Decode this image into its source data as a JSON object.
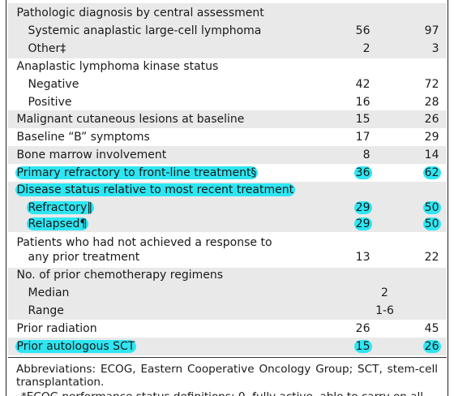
{
  "rows": {
    "path_dx": {
      "label": "Pathologic diagnosis by central assessment"
    },
    "salcl": {
      "label": "Systemic anaplastic large-cell lymphoma",
      "n": "56",
      "pct": "97"
    },
    "other": {
      "label": "Other‡",
      "n": "2",
      "pct": "3"
    },
    "alk": {
      "label": "Anaplastic lymphoma kinase status"
    },
    "neg": {
      "label": "Negative",
      "n": "42",
      "pct": "72"
    },
    "pos": {
      "label": "Positive",
      "n": "16",
      "pct": "28"
    },
    "mcl": {
      "label": "Malignant cutaneous lesions at baseline",
      "n": "15",
      "pct": "26"
    },
    "bsym": {
      "label": "Baseline “B” symptoms",
      "n": "17",
      "pct": "29"
    },
    "bm": {
      "label": "Bone marrow involvement",
      "n": "8",
      "pct": "14"
    },
    "prim": {
      "label": "Primary refractory to front-line treatment§",
      "n": "36",
      "pct": "62"
    },
    "ds": {
      "label": "Disease status relative to most recent treatment"
    },
    "refr": {
      "label": "Refractory‖",
      "n": "29",
      "pct": "50"
    },
    "rel": {
      "label": "Relapsed¶",
      "n": "29",
      "pct": "50"
    },
    "noresp": {
      "label_line1": "Patients who had not achieved a response to",
      "label_line2": "any prior treatment",
      "n": "13",
      "pct": "22"
    },
    "chemo": {
      "label": "No. of prior chemotherapy regimens"
    },
    "median": {
      "label": "Median",
      "value": "2"
    },
    "range": {
      "label": "Range",
      "value": "1-6"
    },
    "rad": {
      "label": "Prior radiation",
      "n": "26",
      "pct": "45"
    },
    "asct": {
      "label": "Prior autologous SCT",
      "n": "15",
      "pct": "26"
    }
  },
  "footnotes": {
    "abbrev": "Abbreviations: ECOG, Eastern Cooperative Oncology Group; SCT, stem-cell transplantation.",
    "partial": "*ECOG performance status definitions: 0, fully active, able to carry on all"
  },
  "colors": {
    "shade": "#e9e9ea",
    "highlight": "#2ee6f2"
  }
}
